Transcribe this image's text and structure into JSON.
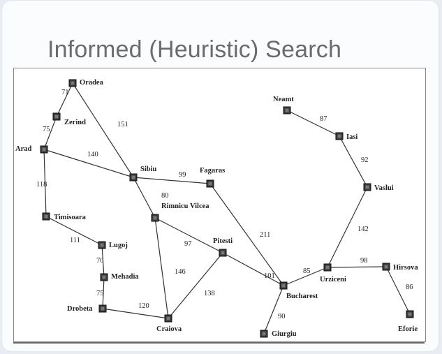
{
  "slide": {
    "title": "Informed (Heuristic) Search"
  },
  "cities": [
    {
      "id": "oradea",
      "name": "Oradea"
    },
    {
      "id": "zerind",
      "name": "Zerind"
    },
    {
      "id": "arad",
      "name": "Arad"
    },
    {
      "id": "timisoara",
      "name": "Timisoara"
    },
    {
      "id": "lugoj",
      "name": "Lugoj"
    },
    {
      "id": "mehadia",
      "name": "Mehadia"
    },
    {
      "id": "drobeta",
      "name": "Drobeta"
    },
    {
      "id": "craiova",
      "name": "Craiova"
    },
    {
      "id": "sibiu",
      "name": "Sibiu"
    },
    {
      "id": "rimnicu",
      "name": "Rimnicu Vilcea"
    },
    {
      "id": "fagaras",
      "name": "Fagaras"
    },
    {
      "id": "pitesti",
      "name": "Pitesti"
    },
    {
      "id": "bucharest",
      "name": "Bucharest"
    },
    {
      "id": "giurgiu",
      "name": "Giurgiu"
    },
    {
      "id": "urziceni",
      "name": "Urziceni"
    },
    {
      "id": "hirsova",
      "name": "Hirsova"
    },
    {
      "id": "eforie",
      "name": "Eforie"
    },
    {
      "id": "vaslui",
      "name": "Vaslui"
    },
    {
      "id": "iasi",
      "name": "Iasi"
    },
    {
      "id": "neamt",
      "name": "Neamt"
    }
  ],
  "roads": [
    {
      "from": "oradea",
      "to": "zerind",
      "distance": "71"
    },
    {
      "from": "zerind",
      "to": "arad",
      "distance": "75"
    },
    {
      "from": "oradea",
      "to": "sibiu",
      "distance": "151"
    },
    {
      "from": "arad",
      "to": "sibiu",
      "distance": "140"
    },
    {
      "from": "arad",
      "to": "timisoara",
      "distance": "118"
    },
    {
      "from": "timisoara",
      "to": "lugoj",
      "distance": "111"
    },
    {
      "from": "lugoj",
      "to": "mehadia",
      "distance": "70"
    },
    {
      "from": "mehadia",
      "to": "drobeta",
      "distance": "75"
    },
    {
      "from": "drobeta",
      "to": "craiova",
      "distance": "120"
    },
    {
      "from": "sibiu",
      "to": "fagaras",
      "distance": "99"
    },
    {
      "from": "sibiu",
      "to": "rimnicu",
      "distance": "80"
    },
    {
      "from": "rimnicu",
      "to": "pitesti",
      "distance": "97"
    },
    {
      "from": "rimnicu",
      "to": "craiova",
      "distance": "146"
    },
    {
      "from": "craiova",
      "to": "pitesti",
      "distance": "138"
    },
    {
      "from": "pitesti",
      "to": "bucharest",
      "distance": "101"
    },
    {
      "from": "fagaras",
      "to": "bucharest",
      "distance": "211"
    },
    {
      "from": "bucharest",
      "to": "giurgiu",
      "distance": "90"
    },
    {
      "from": "bucharest",
      "to": "urziceni",
      "distance": "85"
    },
    {
      "from": "urziceni",
      "to": "hirsova",
      "distance": "98"
    },
    {
      "from": "hirsova",
      "to": "eforie",
      "distance": "86"
    },
    {
      "from": "urziceni",
      "to": "vaslui",
      "distance": "142"
    },
    {
      "from": "vaslui",
      "to": "iasi",
      "distance": "92"
    },
    {
      "from": "iasi",
      "to": "neamt",
      "distance": "87"
    }
  ]
}
